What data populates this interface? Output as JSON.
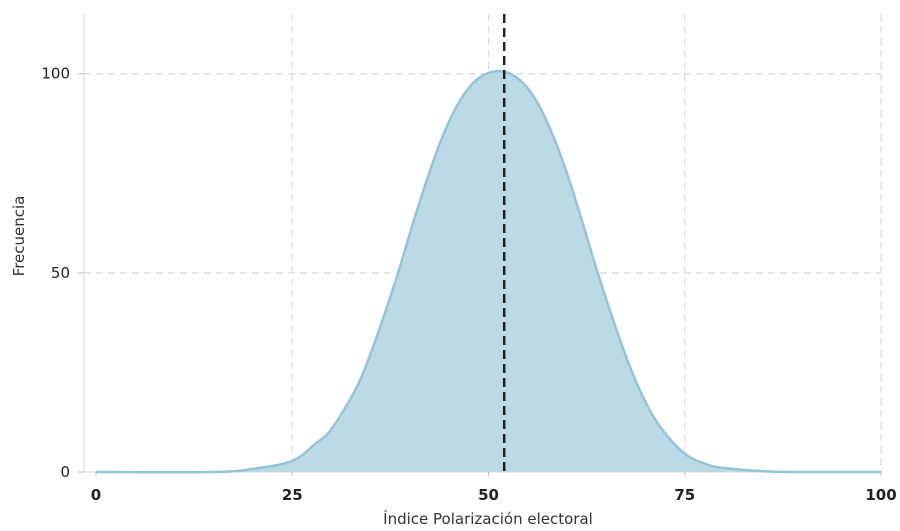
{
  "chart_data": {
    "type": "area",
    "title": "",
    "xlabel": "Índice Polarización electoral",
    "ylabel": "Frecuencia",
    "xlim": [
      0,
      100
    ],
    "ylim": [
      0,
      115
    ],
    "x_ticks": [
      {
        "value": 0,
        "label": "0"
      },
      {
        "value": 25,
        "label": "25"
      },
      {
        "value": 50,
        "label": "50"
      },
      {
        "value": 75,
        "label": "75"
      },
      {
        "value": 100,
        "label": "100"
      }
    ],
    "y_ticks": [
      {
        "value": 0,
        "label": "0"
      },
      {
        "value": 50,
        "label": "50"
      },
      {
        "value": 100,
        "label": "100"
      }
    ],
    "grid": true,
    "reference_line": {
      "x": 52,
      "style": "dashed",
      "color": "#222222"
    },
    "series": [
      {
        "x": [
          0,
          15,
          20,
          25,
          28,
          30,
          33,
          35,
          38,
          40,
          42,
          44,
          46,
          48,
          50,
          52,
          54,
          56,
          58,
          60,
          62,
          64,
          66,
          68,
          70,
          72,
          75,
          78,
          80,
          85,
          90,
          95,
          100
        ],
        "y": [
          0,
          0,
          0.8,
          2.8,
          7.2,
          10.8,
          20.5,
          29.8,
          47,
          60,
          72.5,
          83.5,
          92,
          97.6,
          100.2,
          100.5,
          98.4,
          93.5,
          85.5,
          75,
          62.5,
          49.5,
          37.5,
          26.5,
          17.6,
          11,
          4.6,
          1.8,
          1,
          0.2,
          0,
          0,
          0
        ],
        "color": "#bcdae6",
        "line_color": "#95c3d8"
      }
    ]
  }
}
